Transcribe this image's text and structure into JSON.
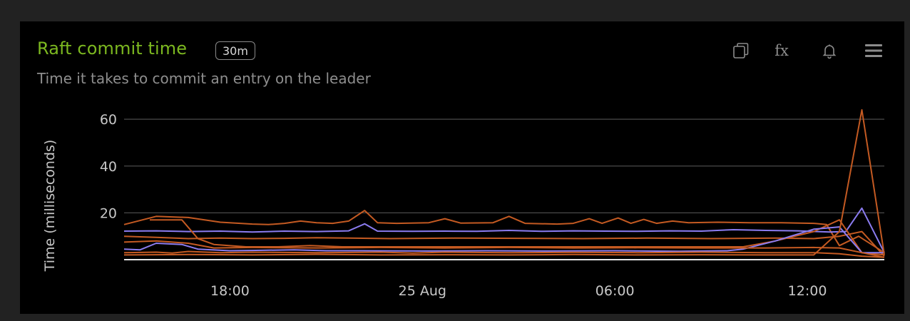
{
  "panel": {
    "title": "Raft commit time",
    "badge": "30m",
    "subtitle": "Time it takes to commit an entry on the leader",
    "colors": {
      "title": "#7cb820",
      "series_orange": "#c45a22",
      "series_purple": "#8b7cf0"
    },
    "icons": [
      "copy-icon",
      "fx-icon",
      "bell-icon",
      "menu-icon"
    ],
    "fx_label": "fx"
  },
  "chart_data": {
    "type": "line",
    "ylabel": "Time (milliseconds)",
    "xlabel": "",
    "x_tick_labels": [
      "18:00",
      "25 Aug",
      "06:00",
      "12:00"
    ],
    "x_tick_hours": [
      18,
      24,
      30,
      36
    ],
    "x_range_hours": [
      14.7,
      38.4
    ],
    "ylim": [
      0,
      64
    ],
    "y_ticks": [
      20,
      40,
      60
    ],
    "grid": "horizontal",
    "legend": "none",
    "series": [
      {
        "color": "#c45a22",
        "points": [
          [
            14.7,
            15
          ],
          [
            15.7,
            18.5
          ],
          [
            16.7,
            18
          ],
          [
            17.7,
            16
          ],
          [
            18.7,
            15.2
          ],
          [
            19.2,
            15
          ],
          [
            19.7,
            15.5
          ],
          [
            20.2,
            16.5
          ],
          [
            20.7,
            15.8
          ],
          [
            21.2,
            15.5
          ],
          [
            21.7,
            16.5
          ],
          [
            22.2,
            21
          ],
          [
            22.6,
            15.8
          ],
          [
            23.2,
            15.5
          ],
          [
            24.2,
            15.8
          ],
          [
            24.7,
            17.5
          ],
          [
            25.2,
            15.6
          ],
          [
            26.2,
            15.8
          ],
          [
            26.7,
            18.5
          ],
          [
            27.2,
            15.5
          ],
          [
            28.2,
            15.2
          ],
          [
            28.7,
            15.5
          ],
          [
            29.2,
            17.5
          ],
          [
            29.6,
            15.5
          ],
          [
            30.1,
            17.8
          ],
          [
            30.5,
            15.5
          ],
          [
            30.9,
            17.2
          ],
          [
            31.3,
            15.5
          ],
          [
            31.8,
            16.5
          ],
          [
            32.3,
            15.8
          ],
          [
            33.2,
            16
          ],
          [
            34.2,
            15.8
          ],
          [
            35.2,
            15.8
          ],
          [
            36.2,
            15.5
          ],
          [
            36.6,
            15
          ],
          [
            37.0,
            6
          ],
          [
            37.6,
            10
          ],
          [
            38.4,
            3
          ]
        ]
      },
      {
        "color": "#8b7cf0",
        "points": [
          [
            14.7,
            12.2
          ],
          [
            15.7,
            12.3
          ],
          [
            16.7,
            12
          ],
          [
            17.7,
            12.2
          ],
          [
            18.7,
            11.8
          ],
          [
            19.7,
            12.2
          ],
          [
            20.7,
            12
          ],
          [
            21.7,
            12.3
          ],
          [
            22.2,
            15.3
          ],
          [
            22.6,
            12.2
          ],
          [
            23.7,
            12.1
          ],
          [
            24.7,
            12.2
          ],
          [
            25.7,
            12.1
          ],
          [
            26.7,
            12.5
          ],
          [
            27.7,
            12.1
          ],
          [
            28.7,
            12.3
          ],
          [
            29.7,
            12.2
          ],
          [
            30.7,
            12.1
          ],
          [
            31.7,
            12.3
          ],
          [
            32.7,
            12.2
          ],
          [
            33.7,
            12.8
          ],
          [
            34.7,
            12.5
          ],
          [
            35.7,
            12.3
          ],
          [
            36.7,
            11.8
          ],
          [
            37.2,
            12
          ],
          [
            37.7,
            22
          ],
          [
            38.4,
            3
          ]
        ]
      },
      {
        "color": "#c45a22",
        "points": [
          [
            15.5,
            17
          ],
          [
            16.5,
            17
          ],
          [
            17.0,
            9
          ],
          [
            17.5,
            6.5
          ],
          [
            18.5,
            5.5
          ],
          [
            19.5,
            5.5
          ],
          [
            20.5,
            6
          ],
          [
            21.5,
            5.5
          ],
          [
            23.0,
            5.5
          ],
          [
            25.0,
            5.5
          ],
          [
            27.0,
            5.5
          ],
          [
            29.0,
            5.5
          ],
          [
            31.0,
            5.5
          ],
          [
            33.0,
            5.5
          ],
          [
            34.0,
            5.5
          ],
          [
            35.0,
            8
          ],
          [
            36.2,
            12
          ],
          [
            37.0,
            17
          ],
          [
            37.7,
            3
          ],
          [
            38.4,
            2
          ]
        ]
      },
      {
        "color": "#c45a22",
        "points": [
          [
            14.7,
            10
          ],
          [
            15.7,
            9.5
          ],
          [
            16.7,
            9
          ],
          [
            17.7,
            9.2
          ],
          [
            18.7,
            9
          ],
          [
            19.7,
            9.1
          ],
          [
            20.7,
            9.4
          ],
          [
            21.7,
            9.2
          ],
          [
            23.0,
            9
          ],
          [
            25.0,
            9.2
          ],
          [
            27.0,
            9.1
          ],
          [
            29.0,
            9
          ],
          [
            31.0,
            9.2
          ],
          [
            33.0,
            9
          ],
          [
            35.0,
            9.2
          ],
          [
            36.2,
            9
          ],
          [
            37.0,
            10
          ],
          [
            37.7,
            12
          ],
          [
            38.4,
            1.5
          ]
        ]
      },
      {
        "color": "#8b7cf0",
        "points": [
          [
            14.7,
            4.5
          ],
          [
            15.2,
            4.2
          ],
          [
            15.7,
            7
          ],
          [
            16.5,
            6.5
          ],
          [
            17.0,
            4.5
          ],
          [
            18.0,
            3.8
          ],
          [
            19.0,
            4
          ],
          [
            20.0,
            4.2
          ],
          [
            21.0,
            3.8
          ],
          [
            22.0,
            3.8
          ],
          [
            24.0,
            3.7
          ],
          [
            26.0,
            3.8
          ],
          [
            28.0,
            3.7
          ],
          [
            30.0,
            3.8
          ],
          [
            32.0,
            3.6
          ],
          [
            33.5,
            3.8
          ],
          [
            34.0,
            4.5
          ],
          [
            35.0,
            8
          ],
          [
            36.2,
            13
          ],
          [
            37.0,
            14
          ],
          [
            37.7,
            3
          ],
          [
            38.4,
            3
          ]
        ]
      },
      {
        "color": "#c45a22",
        "points": [
          [
            14.7,
            7.5
          ],
          [
            15.7,
            8
          ],
          [
            16.7,
            7
          ],
          [
            17.5,
            5
          ],
          [
            18.7,
            5.2
          ],
          [
            20.7,
            5
          ],
          [
            22.7,
            5.2
          ],
          [
            24.7,
            5
          ],
          [
            26.7,
            5.2
          ],
          [
            28.7,
            5
          ],
          [
            30.7,
            5.1
          ],
          [
            32.7,
            5
          ],
          [
            34.7,
            5
          ],
          [
            36.2,
            5.2
          ],
          [
            37.0,
            5
          ],
          [
            37.7,
            3
          ],
          [
            38.4,
            1
          ]
        ]
      },
      {
        "color": "#c45a22",
        "points": [
          [
            14.7,
            3
          ],
          [
            15.7,
            3.2
          ],
          [
            16.2,
            2.8
          ],
          [
            16.7,
            3.5
          ],
          [
            17.7,
            3
          ],
          [
            18.7,
            3.2
          ],
          [
            20.7,
            3
          ],
          [
            22.7,
            3.2
          ],
          [
            23.7,
            2.8
          ],
          [
            24.7,
            3.2
          ],
          [
            26.7,
            3
          ],
          [
            28.7,
            3.1
          ],
          [
            30.7,
            3
          ],
          [
            32.7,
            3.2
          ],
          [
            34.7,
            3
          ],
          [
            36.2,
            3
          ],
          [
            37.0,
            2.5
          ],
          [
            37.7,
            1.5
          ],
          [
            38.4,
            1
          ]
        ]
      },
      {
        "color": "#c45a22",
        "points": [
          [
            14.7,
            2
          ],
          [
            16.7,
            2.2
          ],
          [
            18.7,
            2
          ],
          [
            20.7,
            2.3
          ],
          [
            22.7,
            2
          ],
          [
            24.7,
            2.1
          ],
          [
            26.7,
            2
          ],
          [
            28.7,
            2.2
          ],
          [
            30.7,
            2
          ],
          [
            32.7,
            2.1
          ],
          [
            34.7,
            2
          ],
          [
            36.2,
            2
          ],
          [
            37.0,
            12
          ],
          [
            37.7,
            64
          ],
          [
            38.4,
            2
          ]
        ]
      }
    ]
  }
}
